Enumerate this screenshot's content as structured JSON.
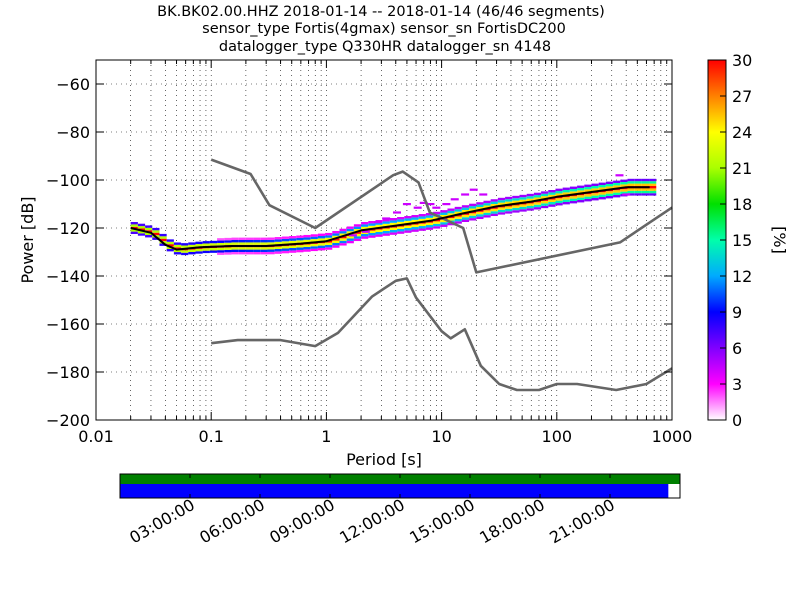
{
  "title": {
    "lines": [
      "BK.BK02.00.HHZ   2018-01-14 -- 2018-01-14  (46/46 segments)",
      "sensor_type Fortis(4gmax) sensor_sn FortisDC200",
      "datalogger_type Q330HR datalogger_sn 4148"
    ]
  },
  "chart_data": [
    {
      "type": "heatmap",
      "xlabel": "Period [s]",
      "ylabel": "Power [dB]",
      "xscale": "log",
      "xlim": [
        0.01,
        1000
      ],
      "ylim": [
        -200,
        -50
      ],
      "xticks": [
        {
          "value": 0.01,
          "label": "0.01"
        },
        {
          "value": 0.1,
          "label": "0.1"
        },
        {
          "value": 1,
          "label": "1"
        },
        {
          "value": 10,
          "label": "10"
        },
        {
          "value": 100,
          "label": "100"
        },
        {
          "value": 1000,
          "label": "1000"
        }
      ],
      "yticks": [
        {
          "value": -200,
          "label": "−200"
        },
        {
          "value": -180,
          "label": "−180"
        },
        {
          "value": -160,
          "label": "−160"
        },
        {
          "value": -140,
          "label": "−140"
        },
        {
          "value": -120,
          "label": "−120"
        },
        {
          "value": -100,
          "label": "−100"
        },
        {
          "value": -80,
          "label": "−80"
        },
        {
          "value": -60,
          "label": "−60"
        }
      ],
      "grid": "dotted",
      "colorbar": {
        "label": "[%]",
        "range": [
          0,
          30
        ],
        "ticks": [
          "0",
          "3",
          "6",
          "9",
          "12",
          "15",
          "18",
          "21",
          "24",
          "27",
          "30"
        ],
        "colormap": [
          "#ffffff",
          "#ff00ff",
          "#8000ff",
          "#0000ff",
          "#00aaff",
          "#00ffaa",
          "#00e000",
          "#aaff00",
          "#ffff00",
          "#ff8000",
          "#ff0000"
        ]
      },
      "series": [
        {
          "role": "model-high",
          "color": "#666666",
          "points": [
            [
              0.1,
              -91.5
            ],
            [
              0.22,
              -97.5
            ],
            [
              0.32,
              -110.5
            ],
            [
              0.8,
              -120
            ],
            [
              3.8,
              -98
            ],
            [
              4.6,
              -96.5
            ],
            [
              6.3,
              -101
            ],
            [
              7.9,
              -113.5
            ],
            [
              15.4,
              -120
            ],
            [
              20,
              -138.5
            ],
            [
              354,
              -126
            ],
            [
              1000,
              -111.5
            ]
          ]
        },
        {
          "role": "model-low",
          "color": "#666666",
          "points": [
            [
              0.1,
              -168
            ],
            [
              0.17,
              -166.7
            ],
            [
              0.4,
              -166.7
            ],
            [
              0.8,
              -169.2
            ],
            [
              1.26,
              -163.7
            ],
            [
              2.5,
              -148.5
            ],
            [
              4,
              -142
            ],
            [
              5,
              -141
            ],
            [
              6,
              -149
            ],
            [
              10,
              -163
            ],
            [
              12,
              -166
            ],
            [
              15.9,
              -162.2
            ],
            [
              21.9,
              -177.4
            ],
            [
              31.6,
              -185
            ],
            [
              45,
              -187.5
            ],
            [
              70,
              -187.5
            ],
            [
              100,
              -185
            ],
            [
              150,
              -185
            ],
            [
              328,
              -187.5
            ],
            [
              600,
              -185
            ],
            [
              1000,
              -178.5
            ]
          ]
        },
        {
          "role": "psd-mode",
          "color": "#000000",
          "points": [
            [
              0.02,
              -120
            ],
            [
              0.03,
              -122
            ],
            [
              0.04,
              -127
            ],
            [
              0.05,
              -129
            ],
            [
              0.08,
              -128
            ],
            [
              0.15,
              -127.5
            ],
            [
              0.3,
              -127.5
            ],
            [
              0.6,
              -126.5
            ],
            [
              1,
              -125.5
            ],
            [
              2,
              -121
            ],
            [
              4,
              -119
            ],
            [
              8,
              -117
            ],
            [
              15,
              -114
            ],
            [
              30,
              -111
            ],
            [
              60,
              -109
            ],
            [
              100,
              -107
            ],
            [
              200,
              -105
            ],
            [
              400,
              -103
            ],
            [
              640,
              -103
            ]
          ]
        }
      ],
      "outliers": [
        [
          1.7,
          -123
        ],
        [
          2.2,
          -121.5
        ],
        [
          2.8,
          -117.5
        ],
        [
          3.3,
          -116
        ],
        [
          4.1,
          -113.5
        ],
        [
          5,
          -110
        ],
        [
          6.2,
          -111.5
        ],
        [
          7,
          -109.5
        ],
        [
          8,
          -110
        ],
        [
          9,
          -111.5
        ],
        [
          11,
          -110
        ],
        [
          13,
          -108
        ],
        [
          16,
          -106
        ],
        [
          19,
          -104
        ],
        [
          23,
          -106
        ],
        [
          350,
          -98
        ],
        [
          400,
          -106
        ]
      ]
    },
    {
      "type": "bar",
      "role": "data-availability",
      "xlim": [
        0,
        24
      ],
      "xticks": [
        {
          "value": 3,
          "label": "03:00:00"
        },
        {
          "value": 6,
          "label": "06:00:00"
        },
        {
          "value": 9,
          "label": "09:00:00"
        },
        {
          "value": 12,
          "label": "12:00:00"
        },
        {
          "value": 15,
          "label": "15:00:00"
        },
        {
          "value": 18,
          "label": "18:00:00"
        },
        {
          "value": 21,
          "label": "21:00:00"
        }
      ],
      "series": [
        {
          "role": "data-coverage",
          "color": "#008000",
          "start": 0,
          "end": 24
        },
        {
          "role": "psd-segments",
          "color": "#0000ff",
          "start": 0,
          "end": 23.5
        }
      ]
    }
  ]
}
